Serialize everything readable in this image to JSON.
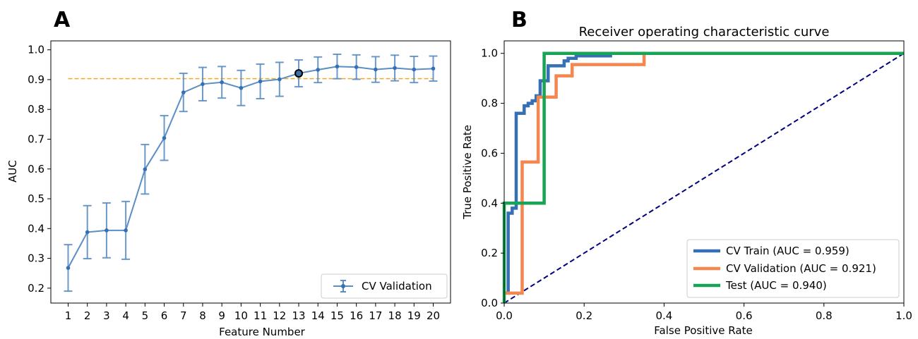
{
  "chart_data": [
    {
      "panel": "A",
      "type": "line",
      "title": "",
      "xlabel": "Feature Number",
      "ylabel": "AUC",
      "x": [
        1,
        2,
        3,
        4,
        5,
        6,
        7,
        8,
        9,
        10,
        11,
        12,
        13,
        14,
        15,
        16,
        17,
        18,
        19,
        20
      ],
      "xlim": [
        0.1,
        20.9
      ],
      "ylim": [
        0.15,
        1.03
      ],
      "x_ticks": [
        "1",
        "2",
        "3",
        "4",
        "5",
        "6",
        "7",
        "8",
        "9",
        "10",
        "11",
        "12",
        "13",
        "14",
        "15",
        "16",
        "17",
        "18",
        "19",
        "20"
      ],
      "y_ticks": [
        "0.2",
        "0.3",
        "0.4",
        "0.5",
        "0.6",
        "0.7",
        "0.8",
        "0.9",
        "1.0"
      ],
      "series": [
        {
          "name": "CV Validation",
          "color": "#5b8ec4",
          "values": [
            0.268,
            0.388,
            0.394,
            0.394,
            0.599,
            0.704,
            0.857,
            0.885,
            0.891,
            0.872,
            0.894,
            0.901,
            0.921,
            0.933,
            0.944,
            0.942,
            0.934,
            0.939,
            0.934,
            0.937
          ],
          "error": [
            0.078,
            0.089,
            0.092,
            0.097,
            0.083,
            0.075,
            0.064,
            0.056,
            0.053,
            0.059,
            0.058,
            0.057,
            0.045,
            0.043,
            0.041,
            0.041,
            0.043,
            0.043,
            0.044,
            0.042
          ]
        }
      ],
      "reference_line": {
        "y": 0.903,
        "color": "#f5a623",
        "style": "dashed"
      },
      "highlight": {
        "x": 13,
        "y": 0.921
      },
      "legend_position": "lower-right",
      "grid": false
    },
    {
      "panel": "B",
      "type": "line",
      "title": "Receiver operating characteristic curve",
      "xlabel": "False Positive Rate",
      "ylabel": "True Positive Rate",
      "xlim": [
        0.0,
        1.0
      ],
      "ylim": [
        0.0,
        1.05
      ],
      "x_ticks": [
        "0.0",
        "0.2",
        "0.4",
        "0.6",
        "0.8",
        "1.0"
      ],
      "y_ticks": [
        "0.0",
        "0.2",
        "0.4",
        "0.6",
        "0.8",
        "1.0"
      ],
      "series": [
        {
          "name": "CV Train (AUC = 0.959)",
          "color": "#3470b3",
          "points": [
            [
              0,
              0.04
            ],
            [
              0.01,
              0.04
            ],
            [
              0.01,
              0.36
            ],
            [
              0.02,
              0.36
            ],
            [
              0.02,
              0.38
            ],
            [
              0.03,
              0.38
            ],
            [
              0.03,
              0.76
            ],
            [
              0.05,
              0.76
            ],
            [
              0.05,
              0.79
            ],
            [
              0.06,
              0.79
            ],
            [
              0.06,
              0.8
            ],
            [
              0.07,
              0.8
            ],
            [
              0.07,
              0.81
            ],
            [
              0.08,
              0.81
            ],
            [
              0.08,
              0.83
            ],
            [
              0.09,
              0.83
            ],
            [
              0.09,
              0.89
            ],
            [
              0.11,
              0.89
            ],
            [
              0.11,
              0.95
            ],
            [
              0.15,
              0.95
            ],
            [
              0.15,
              0.97
            ],
            [
              0.16,
              0.97
            ],
            [
              0.16,
              0.98
            ],
            [
              0.18,
              0.98
            ],
            [
              0.18,
              0.99
            ],
            [
              0.27,
              0.99
            ]
          ]
        },
        {
          "name": "CV Validation (AUC = 0.921)",
          "color": "#f4874f",
          "points": [
            [
              0,
              0.04
            ],
            [
              0.045,
              0.04
            ],
            [
              0.045,
              0.565
            ],
            [
              0.085,
              0.565
            ],
            [
              0.085,
              0.825
            ],
            [
              0.13,
              0.825
            ],
            [
              0.13,
              0.91
            ],
            [
              0.17,
              0.91
            ],
            [
              0.17,
              0.955
            ],
            [
              0.35,
              0.955
            ],
            [
              0.35,
              1.0
            ],
            [
              1.0,
              1.0
            ]
          ]
        },
        {
          "name": "Test (AUC = 0.940)",
          "color": "#17a454",
          "points": [
            [
              0,
              0
            ],
            [
              0,
              0.4
            ],
            [
              0.1,
              0.4
            ],
            [
              0.1,
              1.0
            ],
            [
              1.0,
              1.0
            ]
          ]
        }
      ],
      "diagonal": {
        "color": "#000080",
        "style": "dashed"
      },
      "legend_position": "lower-right",
      "grid": false
    }
  ]
}
